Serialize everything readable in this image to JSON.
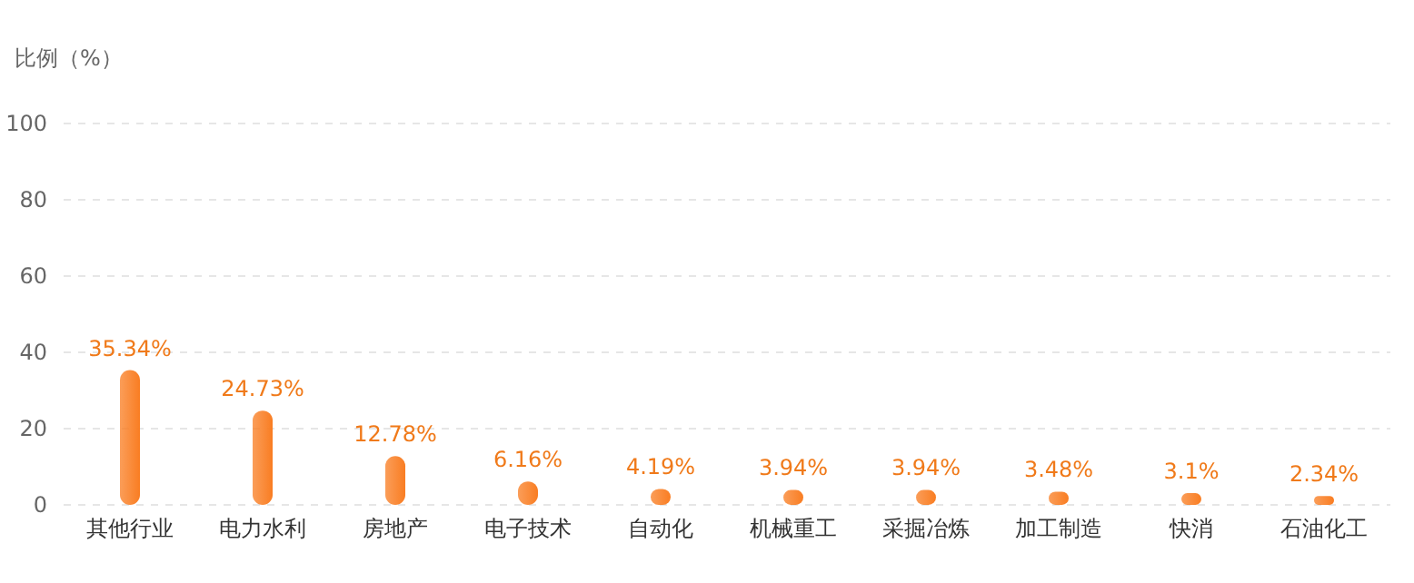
{
  "chart_data": {
    "type": "bar",
    "ylabel": "比例（%）",
    "categories": [
      "其他行业",
      "电力水利",
      "房地产",
      "电子技术",
      "自动化",
      "机械重工",
      "采掘冶炼",
      "加工制造",
      "快消",
      "石油化工"
    ],
    "values": [
      35.34,
      24.73,
      12.78,
      6.16,
      4.19,
      3.94,
      3.94,
      3.48,
      3.1,
      2.34
    ],
    "value_labels": [
      "35.34%",
      "24.73%",
      "12.78%",
      "6.16%",
      "4.19%",
      "3.94%",
      "3.94%",
      "3.48%",
      "3.1%",
      "2.34%"
    ],
    "color": "#f97d22",
    "ylim": [
      0,
      100
    ],
    "yticks": [
      0,
      20,
      40,
      60,
      80,
      100
    ],
    "grid": "y"
  }
}
